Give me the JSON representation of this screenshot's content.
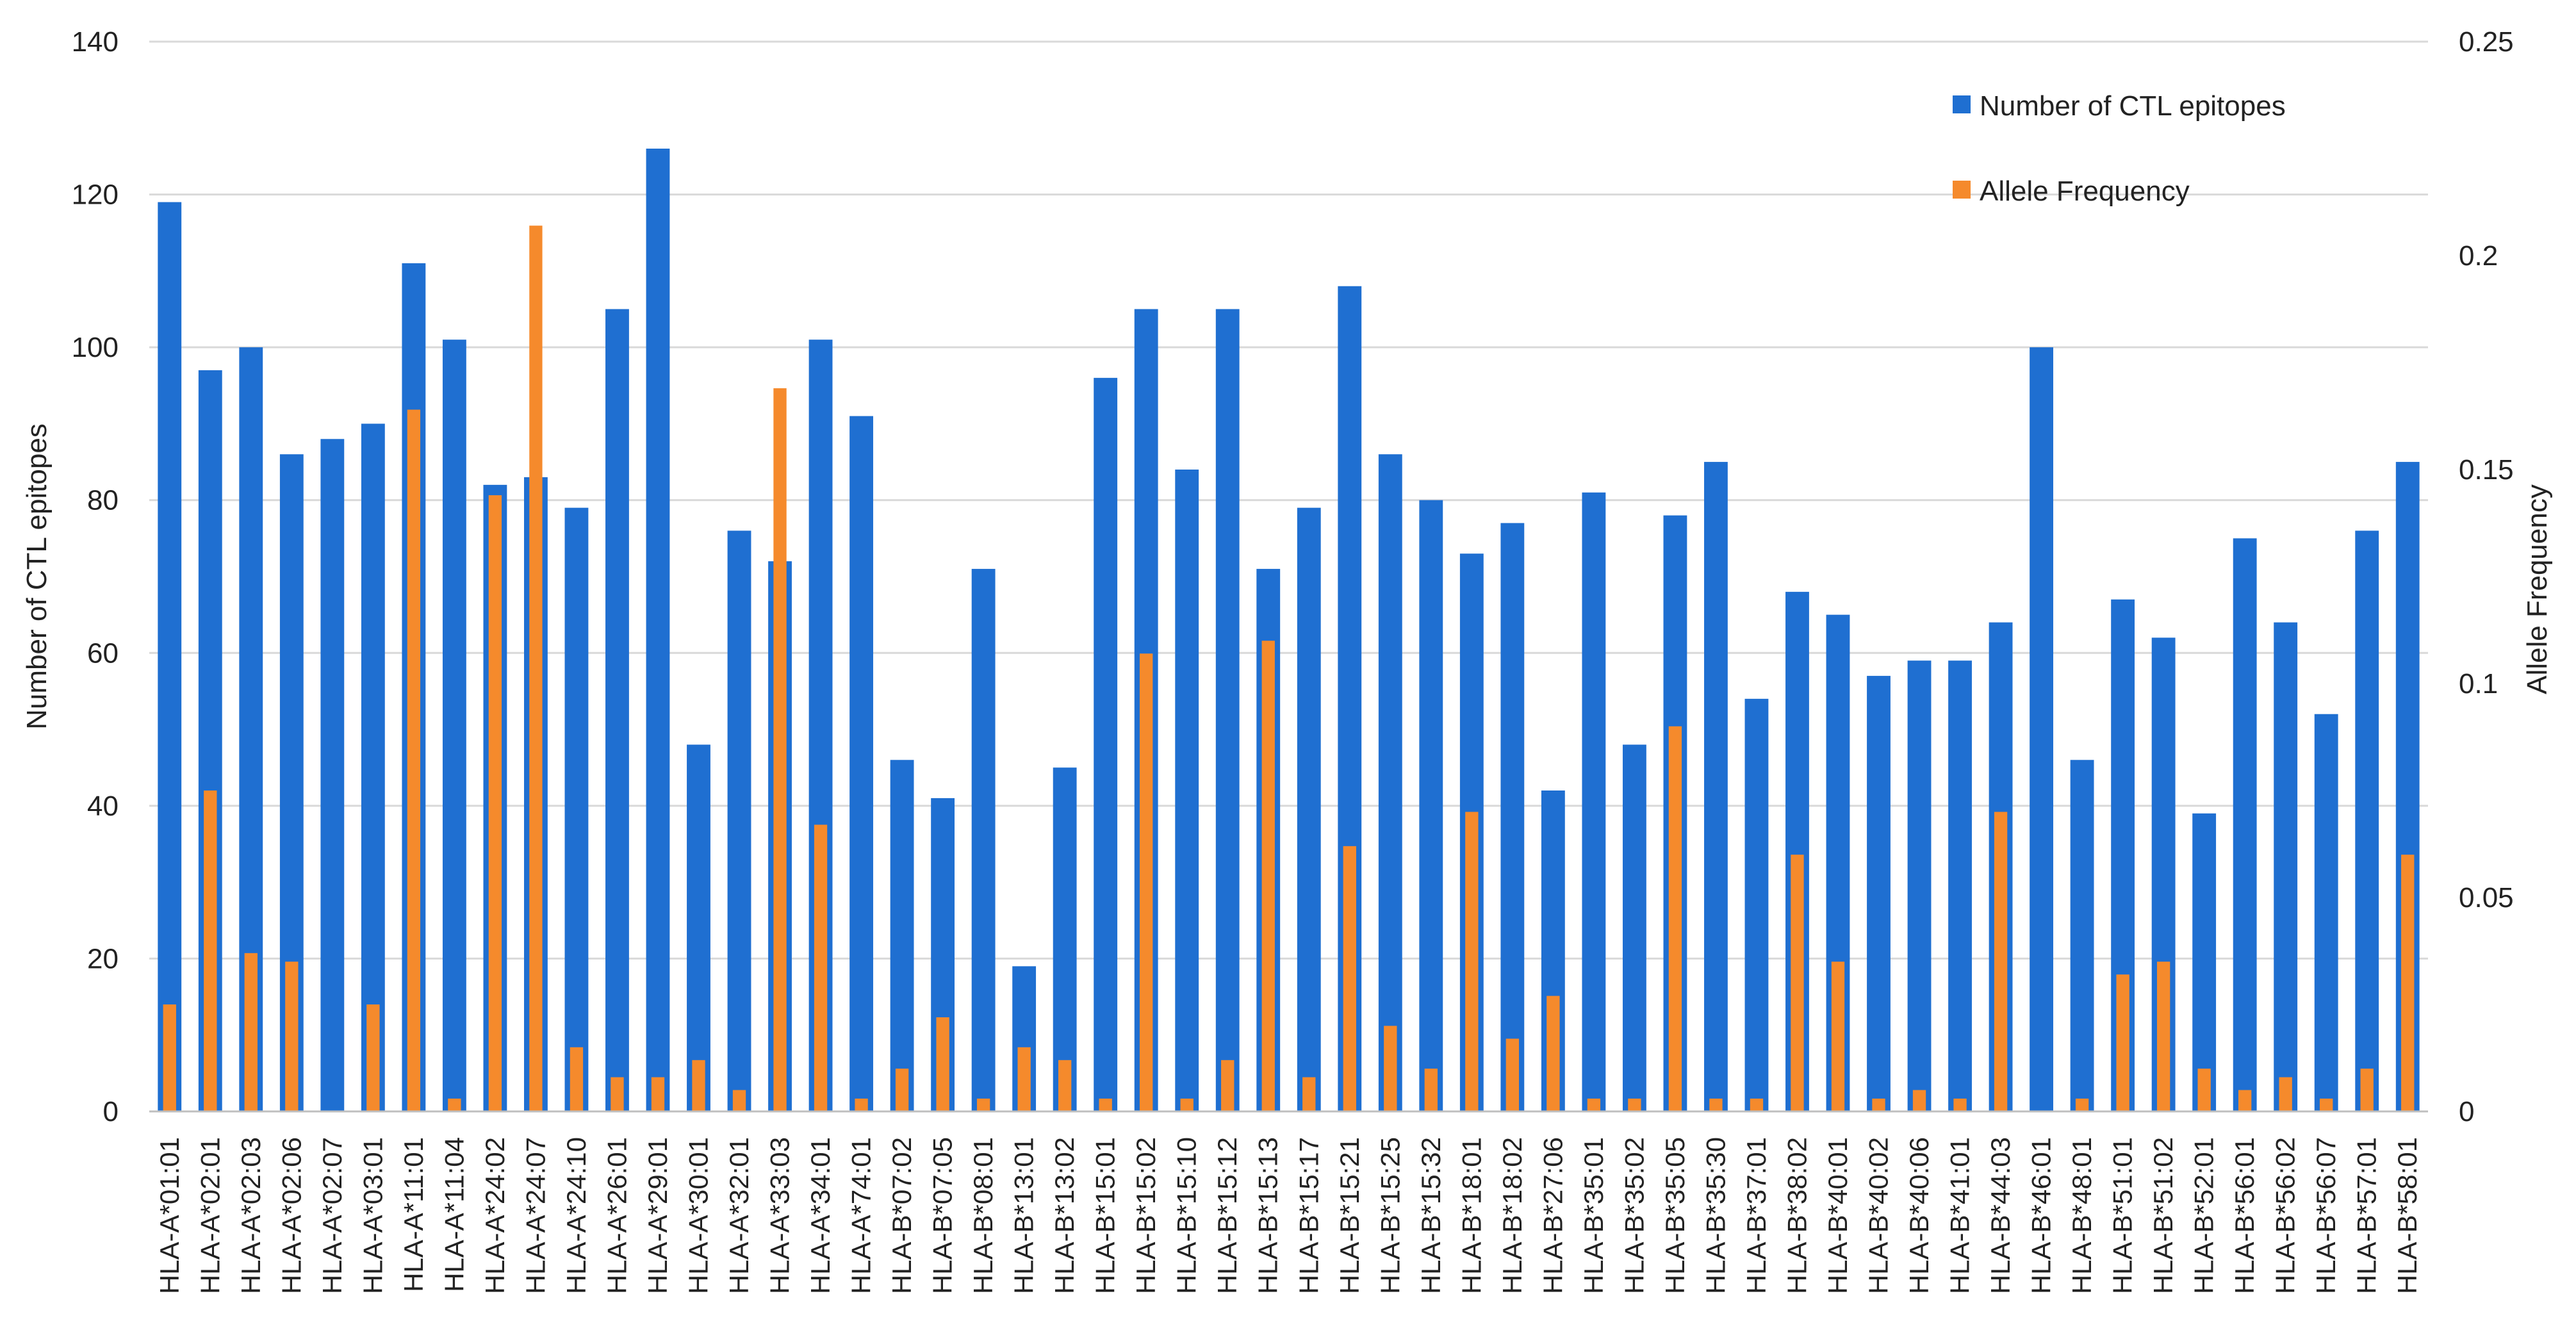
{
  "chart_data": {
    "type": "bar",
    "title": "",
    "xlabel": "",
    "ylabel": "Number of CTL epitopes",
    "y2label": "Allele Frequency",
    "ylim": [
      0,
      140
    ],
    "y2lim": [
      0,
      0.25
    ],
    "yticks": [
      "0",
      "20",
      "40",
      "60",
      "80",
      "100",
      "120",
      "140"
    ],
    "y2ticks": [
      "0",
      "0.05",
      "0.1",
      "0.15",
      "0.2",
      "0.25"
    ],
    "grid": true,
    "legend_position": "top-right",
    "categories": [
      "HLA-A*01:01",
      "HLA-A*02:01",
      "HLA-A*02:03",
      "HLA-A*02:06",
      "HLA-A*02:07",
      "HLA-A*03:01",
      "HLA-A*11:01",
      "HLA-A*11:04",
      "HLA-A*24:02",
      "HLA-A*24:07",
      "HLA-A*24:10",
      "HLA-A*26:01",
      "HLA-A*29:01",
      "HLA-A*30:01",
      "HLA-A*32:01",
      "HLA-A*33:03",
      "HLA-A*34:01",
      "HLA-A*74:01",
      "HLA-B*07:02",
      "HLA-B*07:05",
      "HLA-B*08:01",
      "HLA-B*13:01",
      "HLA-B*13:02",
      "HLA-B*15:01",
      "HLA-B*15:02",
      "HLA-B*15:10",
      "HLA-B*15:12",
      "HLA-B*15:13",
      "HLA-B*15:17",
      "HLA-B*15:21",
      "HLA-B*15:25",
      "HLA-B*15:32",
      "HLA-B*18:01",
      "HLA-B*18:02",
      "HLA-B*27:06",
      "HLA-B*35:01",
      "HLA-B*35:02",
      "HLA-B*35:05",
      "HLA-B*35:30",
      "HLA-B*37:01",
      "HLA-B*38:02",
      "HLA-B*40:01",
      "HLA-B*40:02",
      "HLA-B*40:06",
      "HLA-B*41:01",
      "HLA-B*44:03",
      "HLA-B*46:01",
      "HLA-B*48:01",
      "HLA-B*51:01",
      "HLA-B*51:02",
      "HLA-B*52:01",
      "HLA-B*56:01",
      "HLA-B*56:02",
      "HLA-B*56:07",
      "HLA-B*57:01",
      "HLA-B*58:01"
    ],
    "series": [
      {
        "name": "Number of CTL epitopes",
        "color": "#1f6fd1",
        "axis": "left",
        "values": [
          119,
          97,
          100,
          86,
          88,
          90,
          111,
          101,
          82,
          83,
          79,
          105,
          126,
          48,
          76,
          72,
          101,
          91,
          46,
          41,
          71,
          19,
          45,
          96,
          105,
          84,
          105,
          71,
          79,
          108,
          86,
          80,
          73,
          77,
          42,
          81,
          48,
          78,
          85,
          54,
          68,
          65,
          57,
          59,
          59,
          64,
          100,
          46,
          67,
          62,
          39,
          75,
          64,
          52,
          76,
          85
        ]
      },
      {
        "name": "Allele Frequency",
        "color": "#f58a2c",
        "axis": "right",
        "values": [
          0.025,
          0.075,
          0.037,
          0.035,
          0,
          0.025,
          0.164,
          0.003,
          0.144,
          0.207,
          0.015,
          0.008,
          0.008,
          0.012,
          0.005,
          0.169,
          0.067,
          0.003,
          0.01,
          0.022,
          0.003,
          0.015,
          0.012,
          0.003,
          0.107,
          0.003,
          0.012,
          0.11,
          0.008,
          0.062,
          0.02,
          0.01,
          0.07,
          0.017,
          0.027,
          0.003,
          0.003,
          0.09,
          0.003,
          0.003,
          0.06,
          0.035,
          0.003,
          0.005,
          0.003,
          0.07,
          0,
          0.003,
          0.032,
          0.035,
          0.01,
          0.005,
          0.008,
          0.003,
          0.01,
          0.06
        ]
      }
    ]
  }
}
